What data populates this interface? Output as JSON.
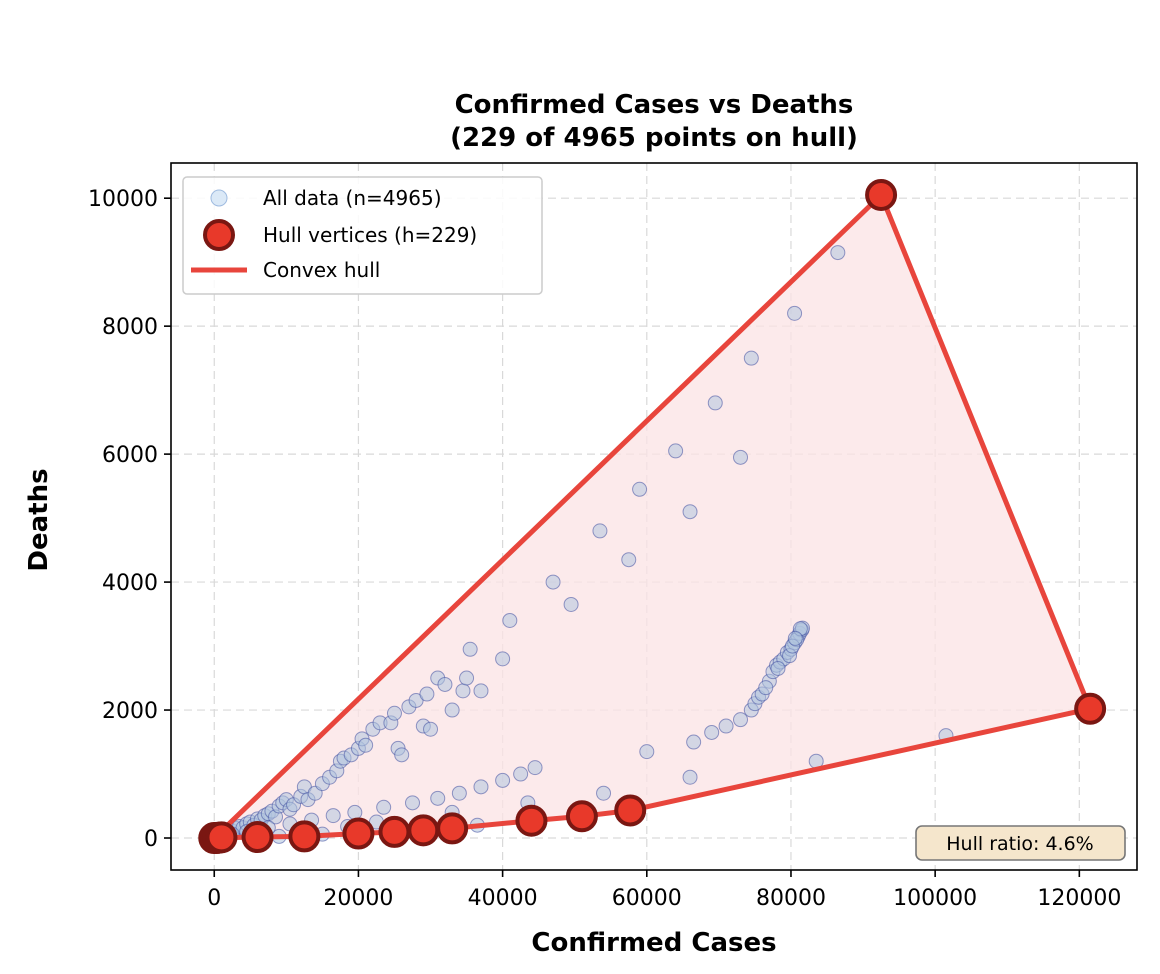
{
  "chart_data": {
    "type": "scatter",
    "title_line1": "Confirmed Cases vs Deaths",
    "title_line2": "(229 of 4965 points on hull)",
    "xlabel": "Confirmed Cases",
    "ylabel": "Deaths",
    "xlim": [
      -6000,
      128000
    ],
    "ylim": [
      -500,
      10550
    ],
    "xticks": [
      0,
      20000,
      40000,
      60000,
      80000,
      100000,
      120000
    ],
    "yticks": [
      0,
      2000,
      4000,
      6000,
      8000,
      10000
    ],
    "grid": true,
    "legend_position": "upper left",
    "legend": [
      {
        "label": "All data (n=4965)",
        "kind": "scatter"
      },
      {
        "label": "Hull vertices (h=229)",
        "kind": "vertex"
      },
      {
        "label": "Convex hull",
        "kind": "line"
      }
    ],
    "annotation": "Hull ratio: 4.6%",
    "colors": {
      "scatter_fill": "#b0c4de",
      "scatter_edge": "#3f4fa0",
      "hull_line": "#e8453c",
      "hull_fill": "#fbe3e4",
      "vertex_fill": "#e8392a",
      "vertex_edge": "#7a1712",
      "annotation_bg": "#f5e6cc"
    },
    "series": [
      {
        "name": "All data (n=4965)",
        "points": [
          [
            0,
            0
          ],
          [
            400,
            20
          ],
          [
            800,
            40
          ],
          [
            1200,
            60
          ],
          [
            1600,
            80
          ],
          [
            2000,
            100
          ],
          [
            2500,
            110
          ],
          [
            3000,
            150
          ],
          [
            3500,
            180
          ],
          [
            4000,
            160
          ],
          [
            4500,
            220
          ],
          [
            5000,
            250
          ],
          [
            5500,
            200
          ],
          [
            6000,
            300
          ],
          [
            6500,
            280
          ],
          [
            7000,
            350
          ],
          [
            7500,
            380
          ],
          [
            8000,
            420
          ],
          [
            8500,
            330
          ],
          [
            9000,
            500
          ],
          [
            9500,
            550
          ],
          [
            10000,
            600
          ],
          [
            10500,
            450
          ],
          [
            11000,
            520
          ],
          [
            12000,
            650
          ],
          [
            12500,
            800
          ],
          [
            13000,
            600
          ],
          [
            14000,
            700
          ],
          [
            15000,
            850
          ],
          [
            16000,
            950
          ],
          [
            17000,
            1050
          ],
          [
            17500,
            1200
          ],
          [
            18000,
            1250
          ],
          [
            19000,
            1300
          ],
          [
            20000,
            1400
          ],
          [
            20500,
            1550
          ],
          [
            21000,
            1450
          ],
          [
            22000,
            1700
          ],
          [
            23000,
            1800
          ],
          [
            24500,
            1800
          ],
          [
            25000,
            1950
          ],
          [
            25500,
            1400
          ],
          [
            26000,
            1300
          ],
          [
            27000,
            2050
          ],
          [
            28000,
            2150
          ],
          [
            29000,
            1750
          ],
          [
            29500,
            2250
          ],
          [
            30000,
            1700
          ],
          [
            31000,
            2500
          ],
          [
            32000,
            2400
          ],
          [
            33000,
            2000
          ],
          [
            34500,
            2300
          ],
          [
            35000,
            2500
          ],
          [
            35500,
            2950
          ],
          [
            37000,
            2300
          ],
          [
            40000,
            2800
          ],
          [
            41000,
            3400
          ],
          [
            47000,
            4000
          ],
          [
            49500,
            3650
          ],
          [
            53500,
            4800
          ],
          [
            57500,
            4350
          ],
          [
            59000,
            5450
          ],
          [
            64000,
            6050
          ],
          [
            66000,
            5100
          ],
          [
            69500,
            6800
          ],
          [
            73000,
            5950
          ],
          [
            74500,
            7500
          ],
          [
            80500,
            8200
          ],
          [
            86500,
            9150
          ],
          [
            101500,
            1600
          ],
          [
            83500,
            1200
          ],
          [
            66000,
            950
          ],
          [
            60000,
            1350
          ],
          [
            66500,
            1500
          ],
          [
            69000,
            1650
          ],
          [
            71000,
            1750
          ],
          [
            73000,
            1850
          ],
          [
            74500,
            2000
          ],
          [
            75000,
            2100
          ],
          [
            75500,
            2200
          ],
          [
            76000,
            2250
          ],
          [
            77000,
            2450
          ],
          [
            77500,
            2600
          ],
          [
            78000,
            2700
          ],
          [
            78500,
            2750
          ],
          [
            79000,
            2800
          ],
          [
            79500,
            2900
          ],
          [
            80000,
            2950
          ],
          [
            80500,
            3050
          ],
          [
            81000,
            3150
          ],
          [
            81200,
            3200
          ],
          [
            81500,
            3250
          ],
          [
            81600,
            3280
          ],
          [
            80800,
            3100
          ],
          [
            79800,
            2850
          ],
          [
            76500,
            2350
          ],
          [
            78200,
            2650
          ],
          [
            80200,
            3000
          ],
          [
            81300,
            3270
          ],
          [
            80600,
            3120
          ],
          [
            44500,
            1100
          ],
          [
            42500,
            1000
          ],
          [
            40000,
            900
          ],
          [
            37000,
            800
          ],
          [
            34000,
            700
          ],
          [
            31000,
            620
          ],
          [
            27500,
            550
          ],
          [
            23500,
            480
          ],
          [
            19500,
            400
          ],
          [
            16500,
            350
          ],
          [
            13500,
            280
          ],
          [
            10500,
            220
          ],
          [
            7500,
            160
          ],
          [
            4500,
            100
          ],
          [
            2500,
            60
          ],
          [
            1500,
            30
          ],
          [
            900,
            15
          ],
          [
            500,
            10
          ],
          [
            300,
            5
          ],
          [
            100,
            2
          ],
          [
            54000,
            700
          ],
          [
            43500,
            550
          ],
          [
            36500,
            200
          ],
          [
            33000,
            400
          ],
          [
            26000,
            150
          ],
          [
            22500,
            250
          ],
          [
            18500,
            180
          ],
          [
            15000,
            60
          ],
          [
            12000,
            40
          ],
          [
            9000,
            25
          ]
        ]
      },
      {
        "name": "Hull vertices (h=229)",
        "points": [
          [
            0,
            0
          ],
          [
            300,
            0
          ],
          [
            600,
            5
          ],
          [
            1000,
            10
          ],
          [
            6000,
            15
          ],
          [
            12500,
            25
          ],
          [
            20000,
            70
          ],
          [
            25000,
            95
          ],
          [
            29000,
            120
          ],
          [
            33000,
            150
          ],
          [
            44000,
            270
          ],
          [
            51000,
            340
          ],
          [
            57700,
            430
          ],
          [
            92500,
            10050
          ],
          [
            121500,
            2020
          ]
        ]
      }
    ],
    "hull_polygon": [
      [
        0,
        0
      ],
      [
        6000,
        15
      ],
      [
        12500,
        25
      ],
      [
        20000,
        70
      ],
      [
        25000,
        95
      ],
      [
        29000,
        120
      ],
      [
        33000,
        150
      ],
      [
        44000,
        270
      ],
      [
        51000,
        340
      ],
      [
        57700,
        430
      ],
      [
        121500,
        2020
      ],
      [
        92500,
        10050
      ],
      [
        0,
        0
      ]
    ]
  }
}
